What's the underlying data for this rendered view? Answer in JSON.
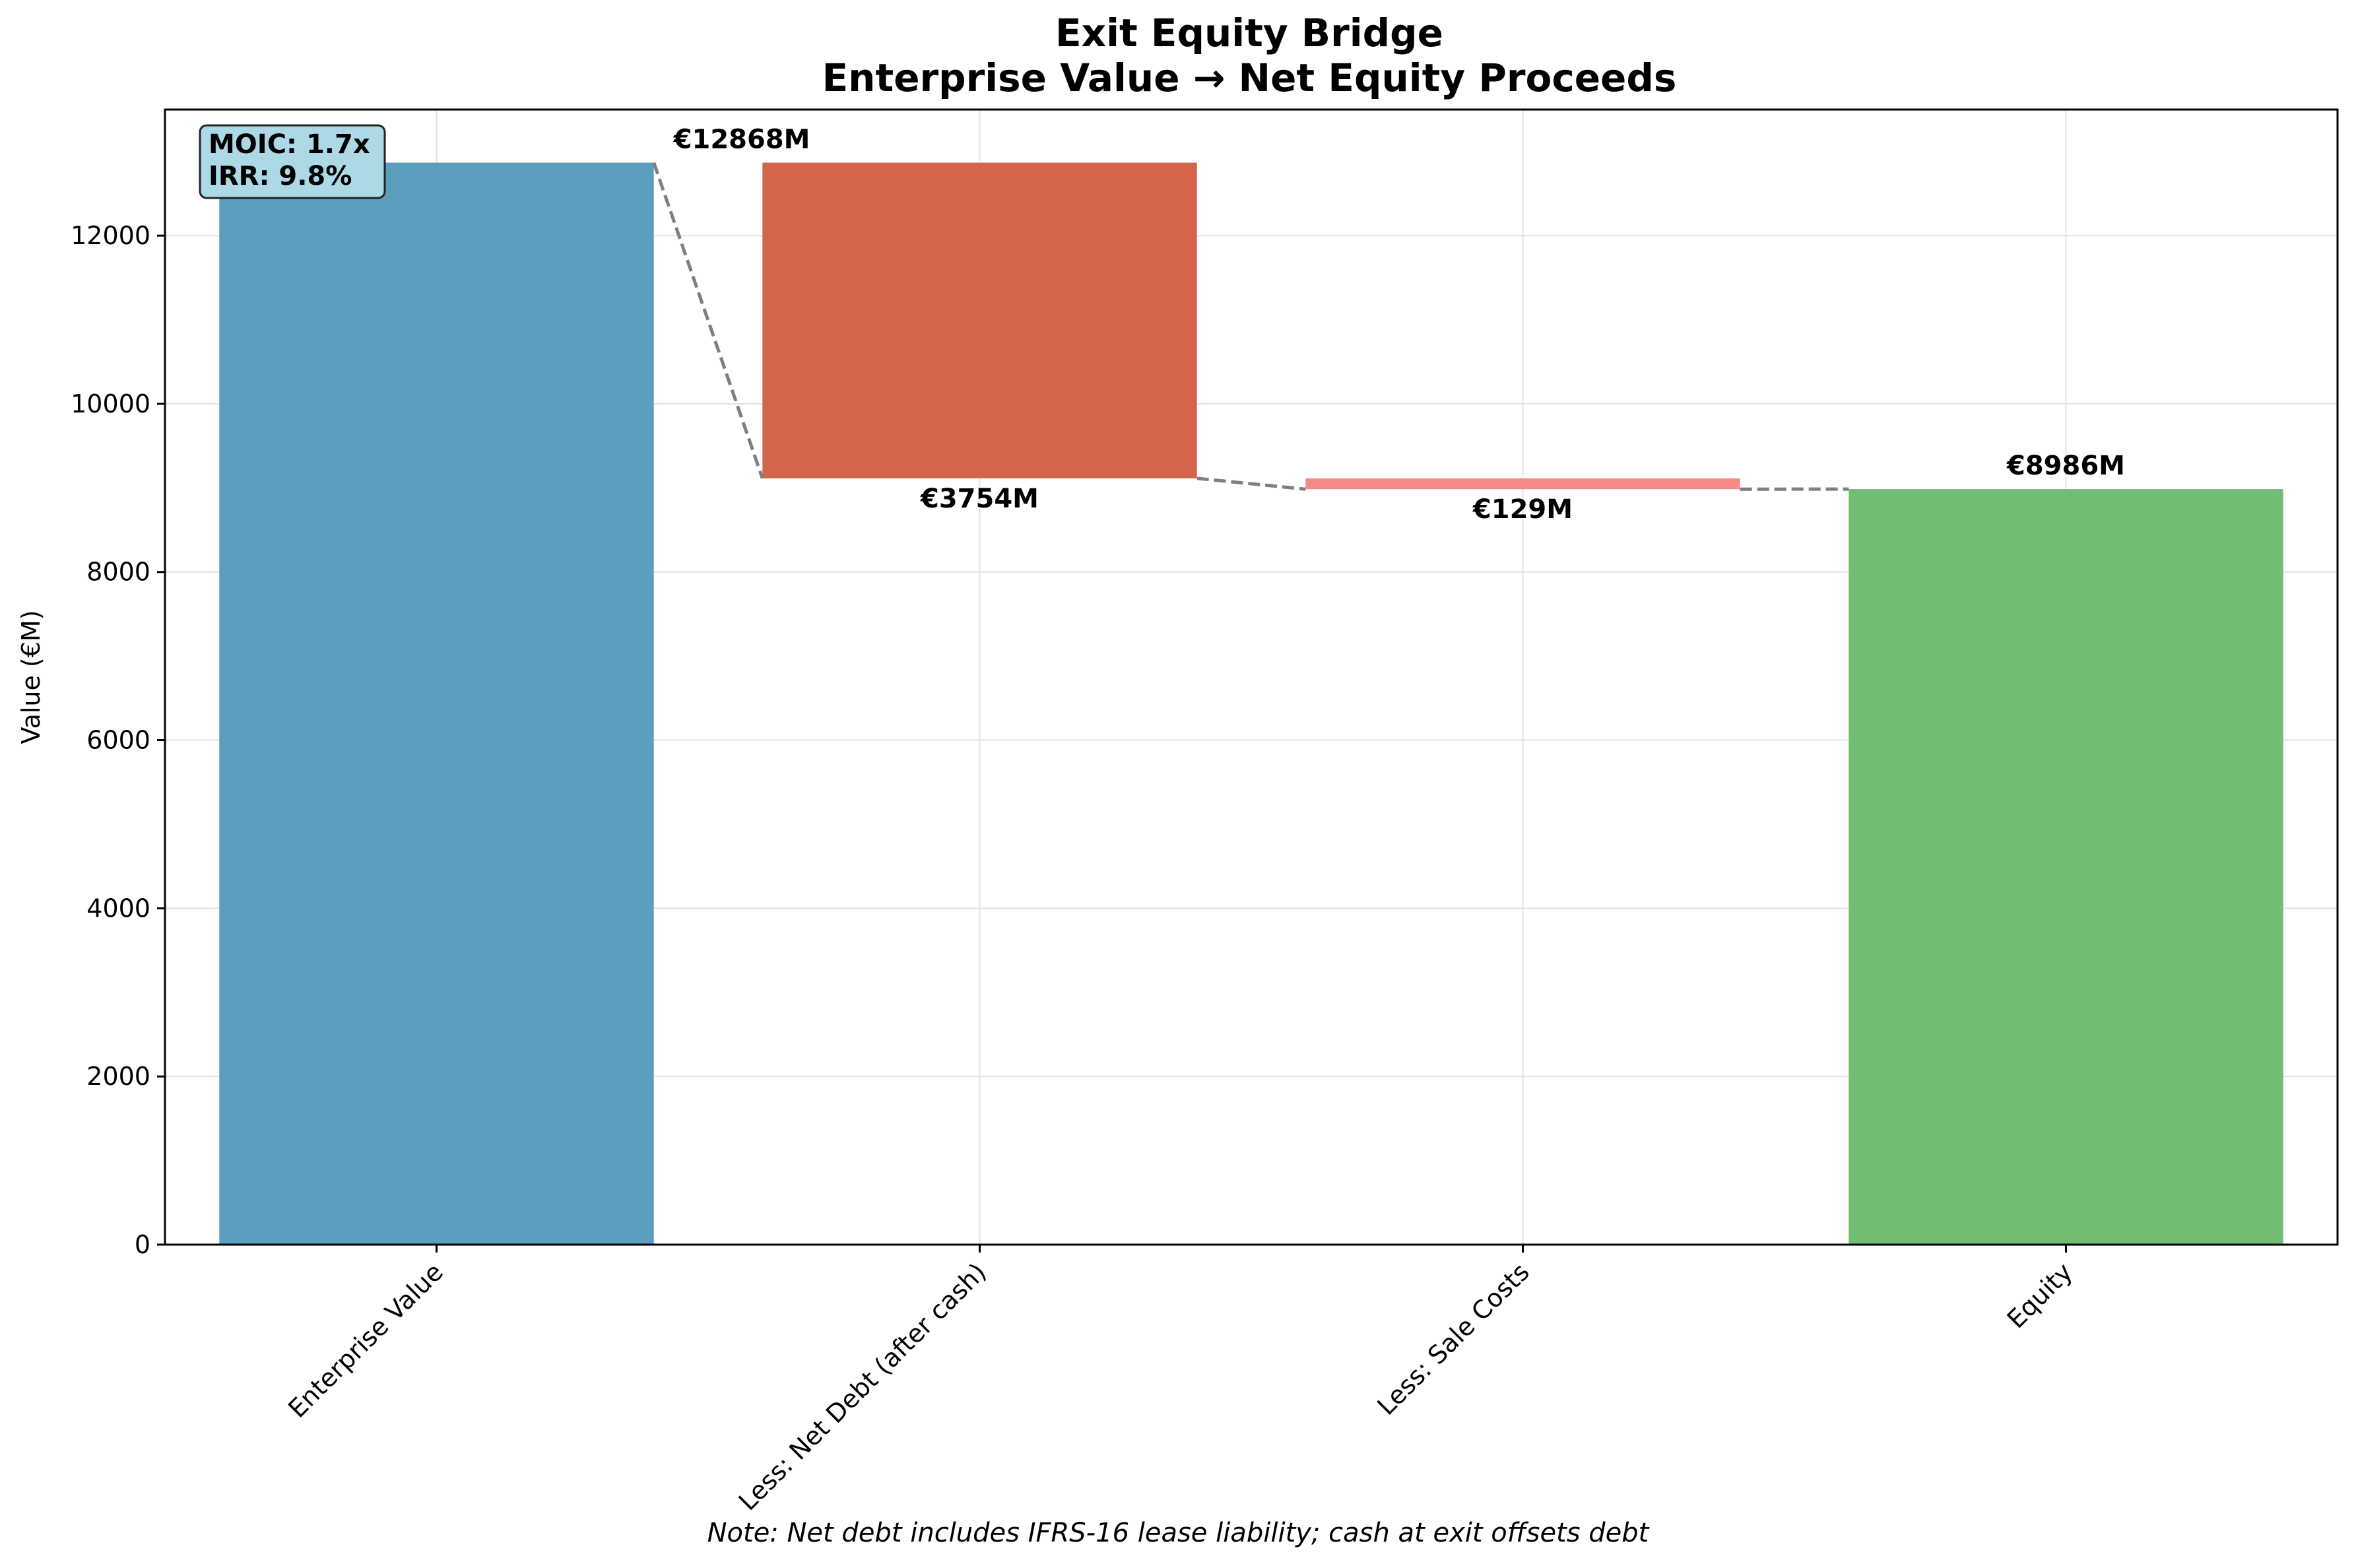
{
  "chart_data": {
    "type": "bar",
    "subtype": "waterfall",
    "title_line1": "Exit Equity Bridge",
    "title_line2": "Enterprise Value → Net Equity Proceeds",
    "ylabel": "Value (€M)",
    "ylim": [
      0,
      13500
    ],
    "yticks": [
      0,
      2000,
      4000,
      6000,
      8000,
      10000,
      12000
    ],
    "grid": true,
    "categories": [
      "Enterprise Value",
      "Less: Net Debt (after cash)",
      "Less: Sale Costs",
      "Equity"
    ],
    "steps": [
      {
        "category": "Enterprise Value",
        "kind": "total",
        "start": 0,
        "end": 12868,
        "label": "€12868M",
        "color": "#5a9dbd"
      },
      {
        "category": "Less: Net Debt (after cash)",
        "kind": "decrease",
        "start": 12868,
        "end": 9114,
        "label": "€3754M",
        "color": "#d4654d"
      },
      {
        "category": "Less: Sale Costs",
        "kind": "decrease",
        "start": 9114,
        "end": 8985,
        "label": "€129M",
        "color": "#f58a86"
      },
      {
        "category": "Equity",
        "kind": "total",
        "start": 0,
        "end": 8986,
        "label": "€8986M",
        "color": "#71be72"
      }
    ],
    "connector_style": "dashed",
    "annotation": {
      "line1": "MOIC: 1.7x",
      "line2": "IRR: 9.8%",
      "position": "top-left"
    },
    "note": "Note: Net debt includes IFRS-16 lease liability; cash at exit offsets debt"
  }
}
